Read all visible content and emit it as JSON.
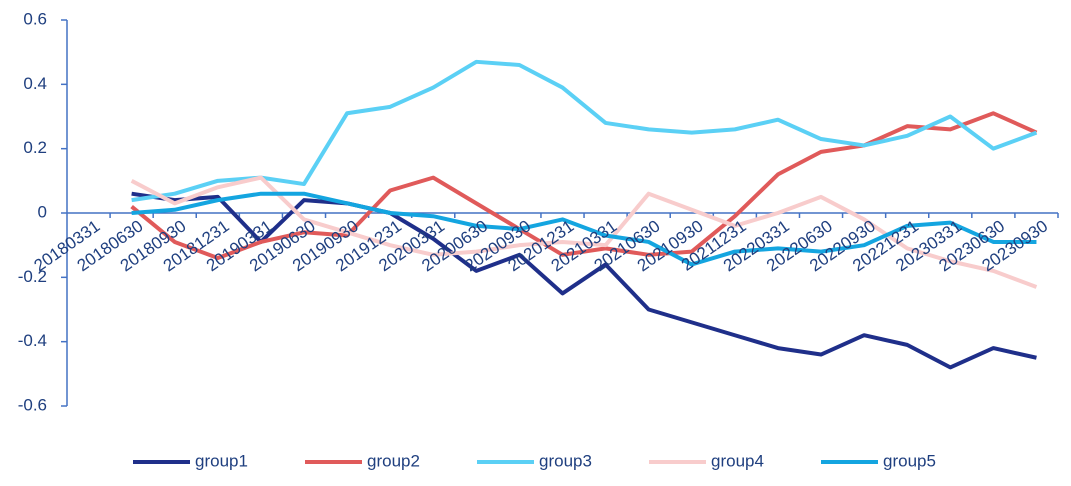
{
  "chart_data": {
    "type": "line",
    "categories": [
      "20180331",
      "20180630",
      "20180930",
      "20181231",
      "20190331",
      "20190630",
      "20190930",
      "20191231",
      "20200331",
      "20200630",
      "20200930",
      "20201231",
      "20210331",
      "20210630",
      "20210930",
      "20211231",
      "20220331",
      "20220630",
      "20220930",
      "20221231",
      "20230331",
      "20230630",
      "20230930"
    ],
    "series": [
      {
        "name": "group1",
        "color": "#1f2f8a",
        "values": [
          null,
          0.06,
          0.04,
          0.05,
          -0.09,
          0.04,
          0.03,
          0.0,
          -0.08,
          -0.18,
          -0.13,
          -0.25,
          -0.16,
          -0.3,
          -0.34,
          -0.38,
          -0.42,
          -0.44,
          -0.38,
          -0.41,
          -0.48,
          -0.42,
          -0.45
        ]
      },
      {
        "name": "group2",
        "color": "#e05a5a",
        "values": [
          null,
          0.02,
          -0.09,
          -0.14,
          -0.09,
          -0.06,
          -0.07,
          0.07,
          0.11,
          0.03,
          -0.05,
          -0.13,
          -0.11,
          -0.13,
          -0.12,
          -0.01,
          0.12,
          0.19,
          0.21,
          0.27,
          0.26,
          0.31,
          0.25
        ]
      },
      {
        "name": "group3",
        "color": "#5bd0f5",
        "values": [
          null,
          0.04,
          0.06,
          0.1,
          0.11,
          0.09,
          0.31,
          0.33,
          0.39,
          0.47,
          0.46,
          0.39,
          0.28,
          0.26,
          0.25,
          0.26,
          0.29,
          0.23,
          0.21,
          0.24,
          0.3,
          0.2,
          0.25
        ]
      },
      {
        "name": "group4",
        "color": "#f8cccc",
        "values": [
          null,
          0.1,
          0.03,
          0.08,
          0.11,
          -0.02,
          -0.06,
          -0.1,
          -0.13,
          -0.12,
          -0.1,
          -0.09,
          -0.1,
          0.06,
          0.01,
          -0.04,
          0.0,
          0.05,
          -0.02,
          -0.11,
          -0.15,
          -0.18,
          -0.23
        ]
      },
      {
        "name": "group5",
        "color": "#14a5e0",
        "values": [
          null,
          0.0,
          0.01,
          0.04,
          0.06,
          0.06,
          0.03,
          0.0,
          -0.01,
          -0.04,
          -0.05,
          -0.02,
          -0.07,
          -0.09,
          -0.16,
          -0.12,
          -0.11,
          -0.12,
          -0.1,
          -0.04,
          -0.03,
          -0.09,
          -0.09
        ]
      }
    ],
    "ylim": [
      -0.6,
      0.6
    ],
    "yticks": [
      0.6,
      0.4,
      0.2,
      0,
      -0.2,
      -0.4,
      -0.6
    ],
    "legend": "bottom"
  }
}
